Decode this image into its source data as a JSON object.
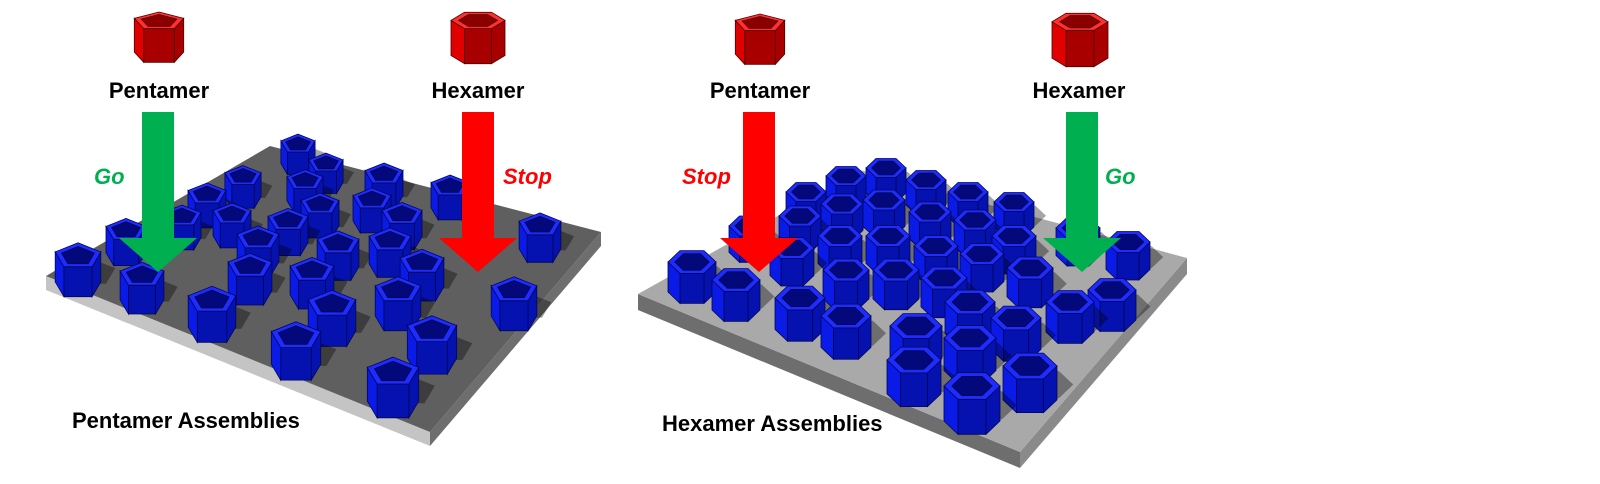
{
  "colors": {
    "substrate_top_dark": "#5f5f5f",
    "substrate_top_light": "#a9a9a9",
    "substrate_side": "#6e6e6e",
    "substrate_edge": "#c4c4c4",
    "assembly_blue": "#0a1be8",
    "assembly_blue_dark": "#03087a",
    "monomer_red": "#e00000",
    "monomer_red_dark": "#8a0000",
    "go_green": "#00b050",
    "stop_red": "#ff0000"
  },
  "panels": [
    {
      "caption": "Pentamer Assemblies",
      "substrate_shade": "dark",
      "assembly_shape": "pentagon",
      "monomers": [
        {
          "label": "Pentamer",
          "shape": "pentagon",
          "signal": "Go",
          "signal_color": "#00b050"
        },
        {
          "label": "Hexamer",
          "shape": "hexagon",
          "signal": "Stop",
          "signal_color": "#ff0000"
        }
      ]
    },
    {
      "caption": "Hexamer Assemblies",
      "substrate_shade": "light",
      "assembly_shape": "hexagon",
      "monomers": [
        {
          "label": "Pentamer",
          "shape": "pentagon",
          "signal": "Stop",
          "signal_color": "#ff0000"
        },
        {
          "label": "Hexamer",
          "shape": "hexagon",
          "signal": "Go",
          "signal_color": "#00b050"
        }
      ]
    }
  ]
}
